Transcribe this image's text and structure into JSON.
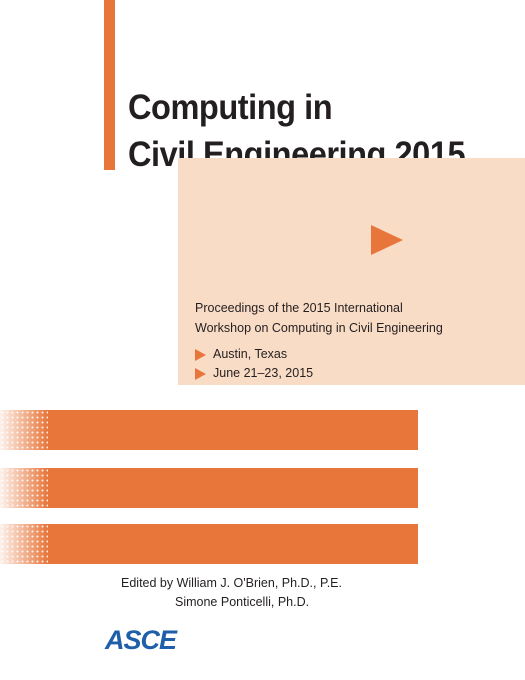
{
  "book": {
    "title_line1": "Computing in",
    "title_line2": "Civil Engineering 2015",
    "proceedings_line1": "Proceedings of the 2015 International",
    "proceedings_line2": "Workshop on Computing in Civil Engineering",
    "location": "Austin, Texas",
    "dates": "June 21–23, 2015",
    "editor_line1": "Edited by William J. O'Brien, Ph.D., P.E.",
    "editor_line2": "Simone Ponticelli, Ph.D.",
    "publisher_logo": "ASCE"
  },
  "colors": {
    "accent_orange": "#e8763a",
    "peach_panel": "#f9dcc6",
    "logo_blue": "#1f5ea8",
    "text": "#231f20"
  }
}
